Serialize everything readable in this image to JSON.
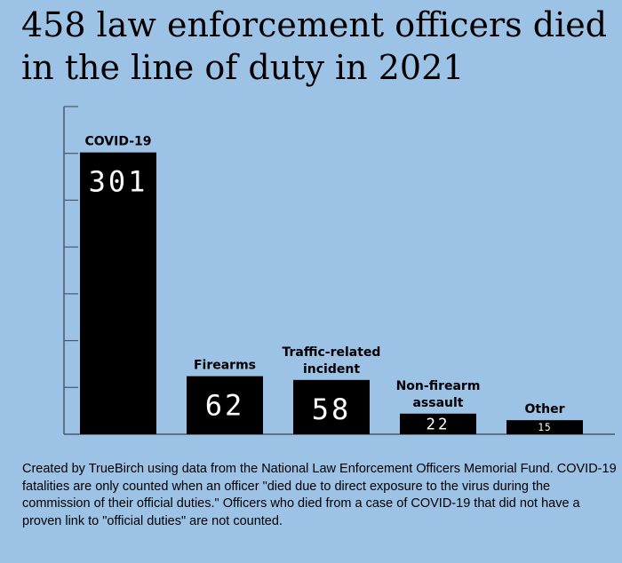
{
  "title": "458 law enforcement officers died in the line of duty in 2021",
  "footer": "Created by TrueBirch using data from the National Law Enforcement Officers Memorial Fund. COVID-19 fatalities are only counted when an officer \"died due to direct exposure to the virus during the commission of their official duties.\" Officers who died from a case of COVID-19 that did not have a proven link to \"official duties\" are not counted.",
  "colors": {
    "background": "#9cc2e6",
    "bar": "#000000",
    "axis": "#4a5868",
    "value_text": "#ffffff"
  },
  "chart_data": {
    "type": "bar",
    "title": "458 law enforcement officers died in the line of duty in 2021",
    "categories": [
      [
        "COVID-19"
      ],
      [
        "Firearms"
      ],
      [
        "Traffic-related",
        "incident"
      ],
      [
        "Non-firearm",
        "assault"
      ],
      [
        "Other"
      ]
    ],
    "values": [
      301,
      62,
      58,
      22,
      15
    ],
    "data_labels": [
      "301",
      "62",
      "58",
      "22",
      "15"
    ],
    "ylim": [
      0,
      350
    ],
    "y_tick_step": 50,
    "y_tick_labels_shown": false,
    "grid": false,
    "xlabel": "",
    "ylabel": ""
  }
}
